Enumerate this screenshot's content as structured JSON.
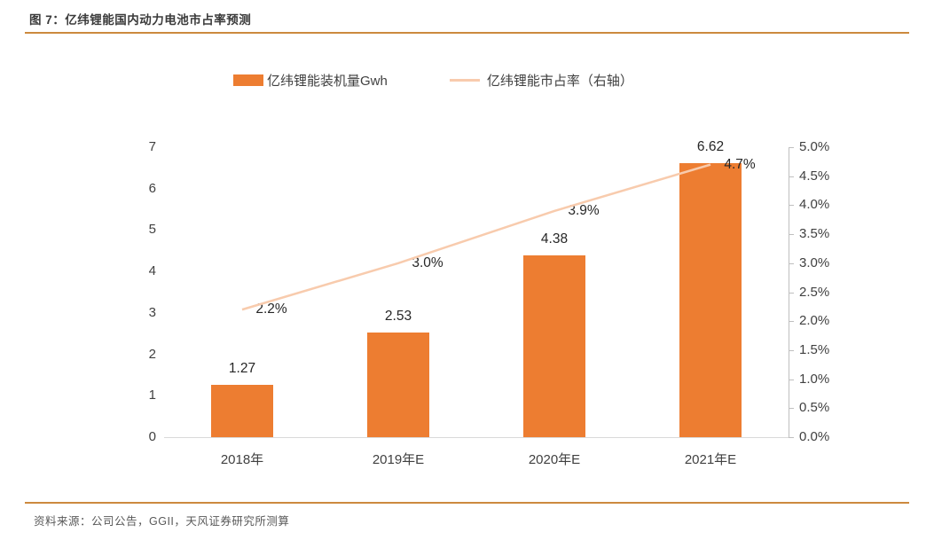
{
  "header": {
    "title": "图 7：亿纬锂能国内动力电池市占率预测"
  },
  "legend": {
    "items": [
      {
        "label": "亿纬锂能装机量Gwh",
        "swatch": "bar",
        "color": "#ED7D31"
      },
      {
        "label": "亿纬锂能市占率（右轴）",
        "swatch": "line",
        "color": "#F8CBAD"
      }
    ]
  },
  "footer": {
    "source": "资料来源：公司公告，GGII，天风证券研究所测算"
  },
  "colors": {
    "bar": "#ED7D31",
    "line": "#F8CBAD",
    "rule": "#cc8a3e",
    "axis": "#bfbfbf",
    "x_axis": "#d9d9d9",
    "text": "#404040"
  },
  "chart_data": {
    "type": "bar",
    "subtype": "bar+line-dual-axis",
    "title": "图 7：亿纬锂能国内动力电池市占率预测",
    "categories": [
      "2018年",
      "2019年E",
      "2020年E",
      "2021年E"
    ],
    "series": [
      {
        "name": "亿纬锂能装机量Gwh",
        "type": "bar",
        "axis": "left",
        "values": [
          1.27,
          2.53,
          4.38,
          6.62
        ],
        "labels": [
          "1.27",
          "2.53",
          "4.38",
          "6.62"
        ]
      },
      {
        "name": "亿纬锂能市占率（右轴）",
        "type": "line",
        "axis": "right",
        "values": [
          2.2,
          3.0,
          3.9,
          4.7
        ],
        "labels": [
          "2.2%",
          "3.0%",
          "3.9%",
          "4.7%"
        ]
      }
    ],
    "left_axis": {
      "min": 0,
      "max": 7,
      "step": 1,
      "ticks": [
        "0",
        "1",
        "2",
        "3",
        "4",
        "5",
        "6",
        "7"
      ]
    },
    "right_axis": {
      "min": 0,
      "max": 5,
      "step": 0.5,
      "ticks": [
        "0.0%",
        "0.5%",
        "1.0%",
        "1.5%",
        "2.0%",
        "2.5%",
        "3.0%",
        "3.5%",
        "4.0%",
        "4.5%",
        "5.0%"
      ]
    },
    "grid": false,
    "legend_position": "top-center"
  }
}
